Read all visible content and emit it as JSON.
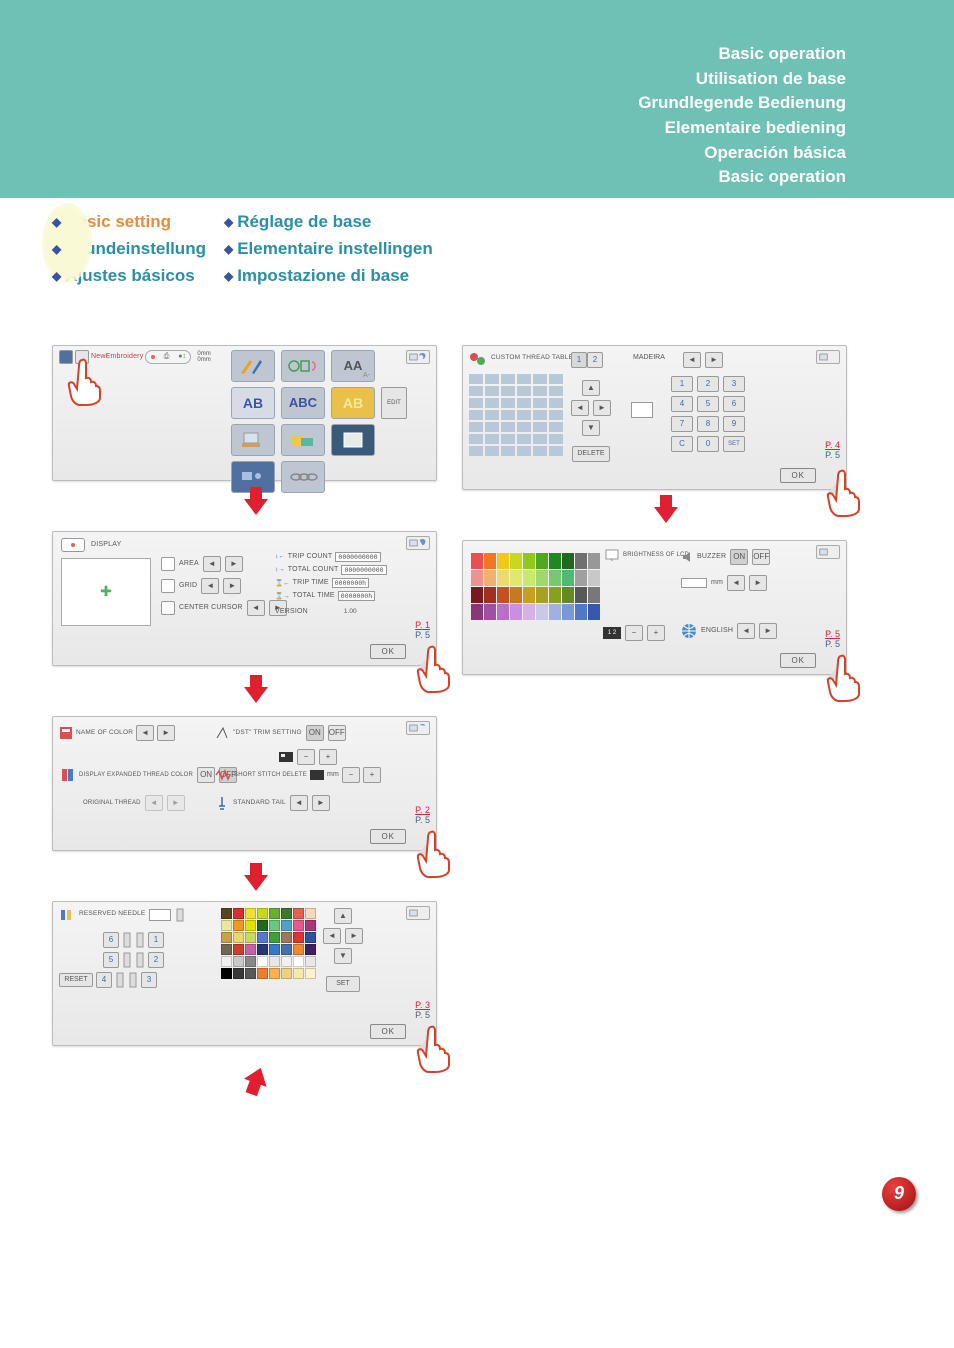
{
  "page_number": "9",
  "background_color": "#ffffff",
  "header": {
    "bg_color": "#6fc1b5",
    "titles": [
      "Basic operation",
      "Utilisation de base",
      "Grundlegende Bedienung",
      "Elementaire bediening",
      "Operación básica",
      "Basic operation"
    ]
  },
  "section_headings": {
    "col1": [
      {
        "label": "Basic setting",
        "color": "#e88c3c"
      },
      {
        "label": "Grundeinstellung",
        "color": "#2a8fa8"
      },
      {
        "label": "Ajustes básicos",
        "color": "#2a8fa8"
      }
    ],
    "col2": [
      {
        "label": "Réglage de base",
        "color": "#2a8fa8"
      },
      {
        "label": "Elementaire instellingen",
        "color": "#2a8fa8"
      },
      {
        "label": "Impostazione di base",
        "color": "#2a8fa8"
      }
    ]
  },
  "panel_menu": {
    "top_labels": [
      "New",
      "Embroidery",
      "0mm",
      "0mm"
    ],
    "tile_labels": {
      "r1": [
        "",
        "",
        "AA"
      ],
      "r2": [
        "AB",
        "ABC",
        "AB"
      ],
      "r3": [
        "",
        "",
        ""
      ],
      "r4": [
        "",
        ""
      ]
    },
    "edit_label": "EDIT",
    "tile_text_colors": {
      "aa": "#d03838",
      "ab1": "#3a52a3",
      "abc": "#3a52a3",
      "ab2": "#e8c04a"
    },
    "tile_bg": "#bec6d2"
  },
  "panel_display": {
    "title": "DISPLAY",
    "rows": [
      {
        "label": "AREA"
      },
      {
        "label": "GRID"
      },
      {
        "label": "CENTER CURSOR"
      }
    ],
    "right_rows": [
      {
        "label": "TRIP COUNT",
        "value": "0000000000"
      },
      {
        "label": "TOTAL COUNT",
        "value": "0000000000"
      },
      {
        "label": "TRIP TIME",
        "value": "0000000h"
      },
      {
        "label": "TOTAL TIME",
        "value": "0000000h"
      }
    ],
    "version_label": "VERSION",
    "version_value": "1.00",
    "page": {
      "top": "P. 1",
      "bot": "P. 5"
    },
    "ok": "OK"
  },
  "panel_color": {
    "name_label": "NAME OF COLOR",
    "dst_label": "\"DST\" TRIM SETTING",
    "on": "ON",
    "off": "OFF",
    "display_expand_label": "DISPLAY EXPANDED THREAD COLOR",
    "short_stitch_label": "SHORT STITCH DELETE",
    "mm_label": "mm",
    "original_label": "ORIGINAL THREAD",
    "standard_tail_label": "STANDARD TAIL",
    "page": {
      "top": "P. 2",
      "bot": "P. 5"
    },
    "ok": "OK"
  },
  "panel_reserved": {
    "title": "RESERVED NEEDLE",
    "reset_label": "RESET",
    "set_label": "SET",
    "numbers_left": [
      "6",
      "5",
      "4"
    ],
    "numbers_right": [
      "1",
      "2",
      "3"
    ],
    "swatch_colors": [
      [
        "#5a4420",
        "#d83030",
        "#f0e030",
        "#c8d820",
        "#68b030",
        "#3a7a28",
        "#e86050",
        "#f8d8b8"
      ],
      [
        "#e8e8a0",
        "#f09820",
        "#e8e000",
        "#206820",
        "#68c880",
        "#50a0c8",
        "#e85888",
        "#a83878"
      ],
      [
        "#c8a050",
        "#e8d870",
        "#c8d860",
        "#5878c8",
        "#40a038",
        "#a07858",
        "#d83830",
        "#3050a8"
      ],
      [
        "#706850",
        "#c84030",
        "#c860a8",
        "#283870",
        "#3878c8",
        "#4870a8",
        "#f08830",
        "#402060"
      ],
      [
        "#f0f0f0",
        "#c8c8c8",
        "#888888",
        "#ffffff",
        "#e8e8e8",
        "#f0f0f0",
        "#ffffff",
        "#e8e8e8"
      ],
      [
        "#000000",
        "#383838",
        "#585858",
        "#e88030",
        "#f8b050",
        "#f0d080",
        "#f8e8b0",
        "#fff0d0"
      ]
    ],
    "page": {
      "top": "P. 3",
      "bot": "P. 5"
    },
    "ok": "OK"
  },
  "panel_custom": {
    "title": "CUSTOM THREAD TABLE",
    "quick12": [
      "1",
      "2"
    ],
    "brand": "MADEIRA",
    "keypad": [
      [
        "1",
        "2",
        "3"
      ],
      [
        "4",
        "5",
        "6"
      ],
      [
        "7",
        "8",
        "9"
      ],
      [
        "C",
        "0",
        "SET"
      ]
    ],
    "delete_label": "DELETE",
    "grid_bg": "#b8c8d8",
    "page": {
      "top": "P. 4",
      "bot": "P. 5"
    },
    "ok": "OK"
  },
  "panel_brightness": {
    "swatch_colors": [
      [
        "#e85050",
        "#f07820",
        "#f0c820",
        "#c8d820",
        "#90c820",
        "#50a820",
        "#208820",
        "#206820",
        "#707070",
        "#989898"
      ],
      [
        "#f09090",
        "#f0b070",
        "#f0d870",
        "#e0e870",
        "#c8e870",
        "#a0d870",
        "#78c870",
        "#50b870",
        "#a0a0a0",
        "#c8c8c8"
      ],
      [
        "#781820",
        "#a03020",
        "#c85020",
        "#c87820",
        "#c8a020",
        "#a8a020",
        "#88a020",
        "#688820",
        "#585858",
        "#787878"
      ],
      [
        "#883878",
        "#a050a0",
        "#b870c8",
        "#c890e0",
        "#d8b0e8",
        "#c8c8e8",
        "#a0b0e0",
        "#7898d8",
        "#5078c8",
        "#3858b0"
      ]
    ],
    "brightness_label": "BRIGHTNESS OF LCD",
    "buzzer_label": "BUZZER",
    "on": "ON",
    "off": "OFF",
    "mm_label": "mm",
    "lang_label": "ENGLISH",
    "scale12": "1 2",
    "page": {
      "top": "P. 5",
      "bot": "P. 5"
    },
    "ok": "OK"
  }
}
